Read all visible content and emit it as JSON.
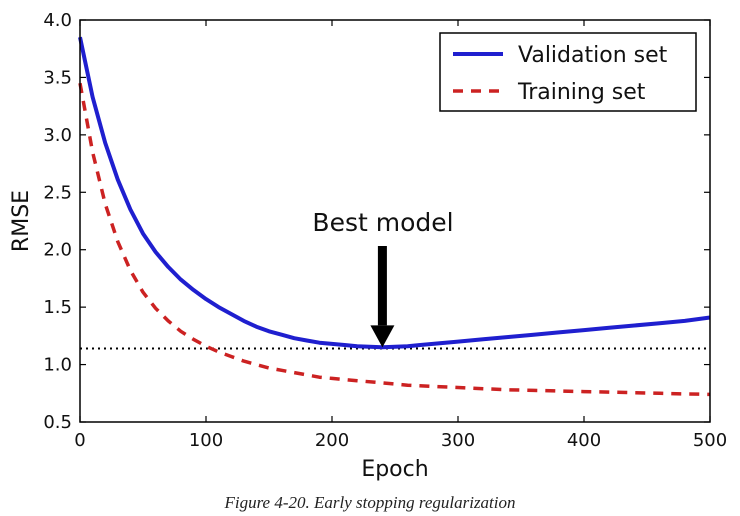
{
  "chart_data": {
    "type": "line",
    "xlabel": "Epoch",
    "ylabel": "RMSE",
    "xlim": [
      0,
      500
    ],
    "ylim": [
      0.5,
      4.0
    ],
    "xticks": [
      "0",
      "100",
      "200",
      "300",
      "400",
      "500"
    ],
    "yticks": [
      "0.5",
      "1.0",
      "1.5",
      "2.0",
      "2.5",
      "3.0",
      "3.5",
      "4.0"
    ],
    "grid": false,
    "legend_position": "top-right",
    "series": [
      {
        "name": "Validation set",
        "color": "#1f1fcf",
        "style": "solid",
        "x": [
          0,
          10,
          20,
          30,
          40,
          50,
          60,
          70,
          80,
          90,
          100,
          110,
          120,
          130,
          140,
          150,
          160,
          170,
          180,
          190,
          200,
          210,
          220,
          230,
          240,
          250,
          260,
          270,
          280,
          290,
          300,
          320,
          340,
          360,
          380,
          400,
          420,
          440,
          460,
          480,
          500
        ],
        "y": [
          3.85,
          3.33,
          2.93,
          2.61,
          2.35,
          2.14,
          1.98,
          1.85,
          1.74,
          1.65,
          1.57,
          1.5,
          1.44,
          1.38,
          1.33,
          1.29,
          1.26,
          1.23,
          1.21,
          1.19,
          1.18,
          1.17,
          1.16,
          1.155,
          1.15,
          1.155,
          1.16,
          1.17,
          1.18,
          1.19,
          1.2,
          1.22,
          1.24,
          1.26,
          1.28,
          1.3,
          1.32,
          1.34,
          1.36,
          1.38,
          1.41
        ]
      },
      {
        "name": "Training set",
        "color": "#cc2222",
        "style": "dashed",
        "x": [
          0,
          10,
          20,
          30,
          40,
          50,
          60,
          70,
          80,
          90,
          100,
          110,
          120,
          130,
          140,
          150,
          160,
          170,
          180,
          190,
          200,
          220,
          240,
          260,
          280,
          300,
          320,
          340,
          360,
          380,
          400,
          420,
          440,
          460,
          480,
          500
        ],
        "y": [
          3.45,
          2.85,
          2.4,
          2.07,
          1.82,
          1.63,
          1.49,
          1.38,
          1.29,
          1.22,
          1.16,
          1.11,
          1.07,
          1.03,
          1.0,
          0.97,
          0.95,
          0.93,
          0.91,
          0.89,
          0.88,
          0.86,
          0.84,
          0.82,
          0.81,
          0.8,
          0.79,
          0.78,
          0.775,
          0.77,
          0.765,
          0.76,
          0.755,
          0.75,
          0.745,
          0.74
        ]
      }
    ],
    "reference_line": {
      "y": 1.14,
      "style": "dotted",
      "color": "#000000"
    },
    "annotation": {
      "text": "Best model",
      "arrow_x": 240,
      "arrow_y": 1.15
    }
  },
  "caption": "Figure 4-20. Early stopping regularization"
}
